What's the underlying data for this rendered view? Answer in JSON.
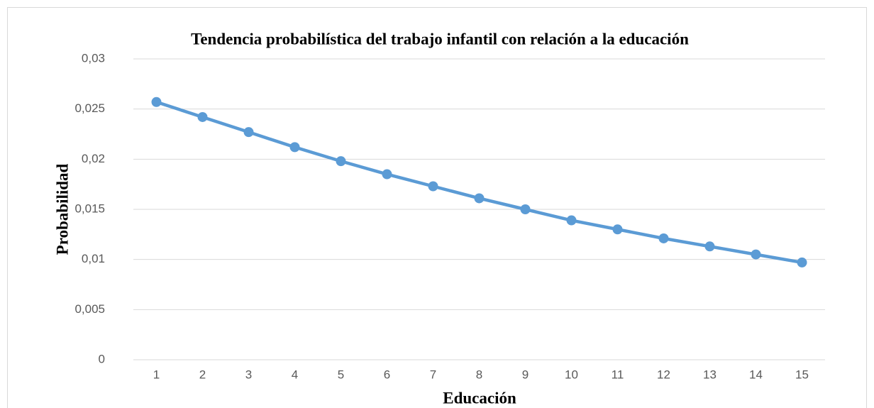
{
  "chart_data": {
    "type": "line",
    "title": "Tendencia probabilística del trabajo infantil con relación a la educación",
    "x_label": "Educación",
    "y_label": "Probabilidad",
    "categories": [
      "1",
      "2",
      "3",
      "4",
      "5",
      "6",
      "7",
      "8",
      "9",
      "10",
      "11",
      "12",
      "13",
      "14",
      "15"
    ],
    "series": [
      {
        "name": "Probabilidad",
        "color": "#5b9bd5",
        "values": [
          0.0257,
          0.0242,
          0.0227,
          0.0212,
          0.0198,
          0.0185,
          0.0173,
          0.0161,
          0.015,
          0.0139,
          0.013,
          0.0121,
          0.0113,
          0.0105,
          0.0097
        ]
      }
    ],
    "ylim": [
      0,
      0.03
    ],
    "yticks": [
      0,
      {
        "value": 0.005,
        "label": "0,005"
      },
      {
        "value": 0.01,
        "label": "0,01"
      },
      {
        "value": 0.015,
        "label": "0,015"
      },
      {
        "value": 0.02,
        "label": "0,02"
      },
      {
        "value": 0.025,
        "label": "0,025"
      },
      {
        "value": 0.03,
        "label": "0,03"
      }
    ],
    "grid": true
  }
}
